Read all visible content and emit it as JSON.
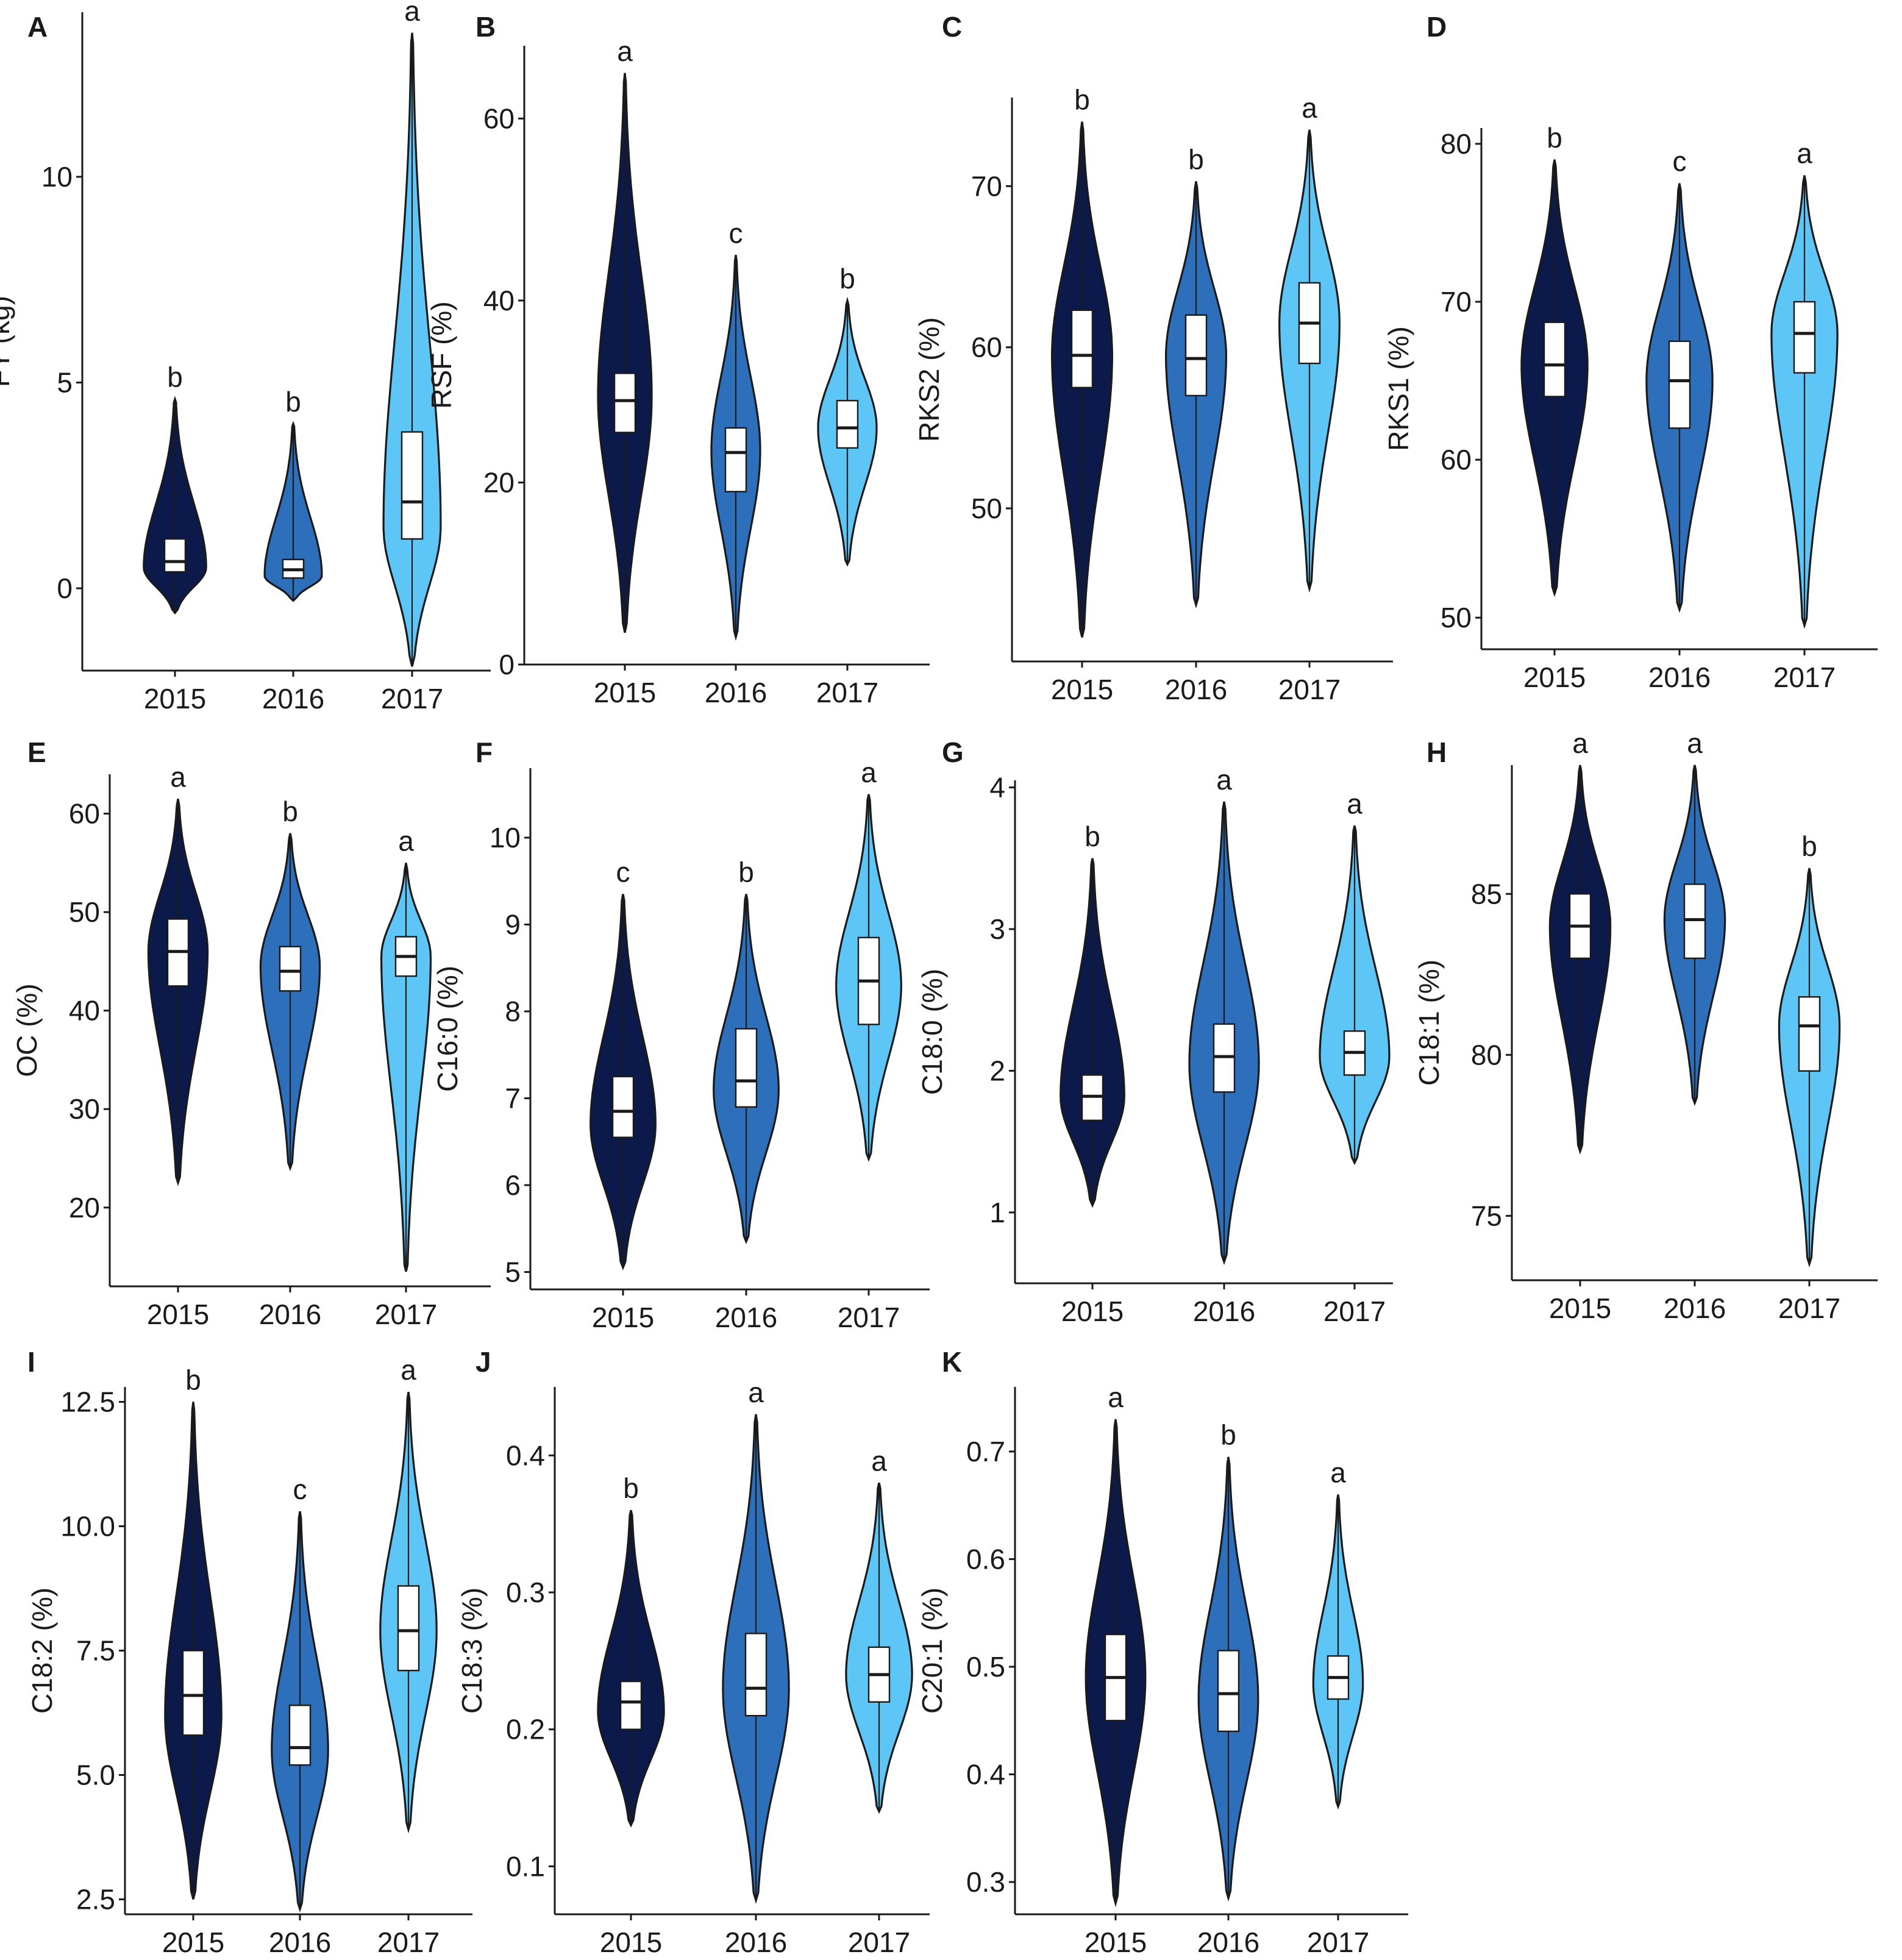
{
  "colors": {
    "2015": "#0b1a4a",
    "2016": "#2d6fba",
    "2017": "#5ec6f6",
    "axis": "#1a1a1a"
  },
  "chart_data": [
    {
      "letter": "A",
      "type": "violin",
      "ylabel": "FY (kg)",
      "ylim": [
        -2,
        14
      ],
      "ticks": [
        0,
        5,
        10
      ],
      "tick_labels": [
        "0",
        "5",
        "10"
      ],
      "categories": [
        "2015",
        "2016",
        "2017"
      ],
      "groups": [
        {
          "year": "2015",
          "min": -0.6,
          "q1": 0.4,
          "median": 0.65,
          "q3": 1.2,
          "max": 4.6,
          "mode": 0.5,
          "bw": 0.12,
          "sig": "b"
        },
        {
          "year": "2016",
          "min": -0.3,
          "q1": 0.25,
          "median": 0.45,
          "q3": 0.7,
          "max": 4.0,
          "mode": 0.3,
          "bw": 0.11,
          "sig": "b"
        },
        {
          "year": "2017",
          "min": -1.9,
          "q1": 1.2,
          "median": 2.1,
          "q3": 3.8,
          "max": 13.5,
          "mode": 1.5,
          "bw": 0.11,
          "sig": "a"
        }
      ]
    },
    {
      "letter": "B",
      "type": "violin",
      "ylabel": "RSF (%)",
      "ylim": [
        0,
        68
      ],
      "ticks": [
        0,
        20,
        40,
        60
      ],
      "tick_labels": [
        "0",
        "20",
        "40",
        "60"
      ],
      "categories": [
        "2015",
        "2016",
        "2017"
      ],
      "groups": [
        {
          "year": "2015",
          "min": 3.5,
          "q1": 25.5,
          "median": 29,
          "q3": 32,
          "max": 65,
          "mode": 29.5,
          "bw": 0.11,
          "sig": "a"
        },
        {
          "year": "2016",
          "min": 3,
          "q1": 19,
          "median": 23.3,
          "q3": 26,
          "max": 45,
          "mode": 23.5,
          "bw": 0.1,
          "sig": "c"
        },
        {
          "year": "2017",
          "min": 11,
          "q1": 23.8,
          "median": 26,
          "q3": 29,
          "max": 40,
          "mode": 26,
          "bw": 0.12,
          "sig": "b"
        }
      ]
    },
    {
      "letter": "C",
      "type": "violin",
      "ylabel": "RKS2 (%)",
      "ylim": [
        40.5,
        75.5
      ],
      "ticks": [
        50,
        60,
        70
      ],
      "tick_labels": [
        "50",
        "60",
        "70"
      ],
      "categories": [
        "2015",
        "2016",
        "2017"
      ],
      "groups": [
        {
          "year": "2015",
          "min": 42,
          "q1": 57.5,
          "median": 59.5,
          "q3": 62.3,
          "max": 74,
          "mode": 59.5,
          "bw": 0.12,
          "sig": "b"
        },
        {
          "year": "2016",
          "min": 44,
          "q1": 57,
          "median": 59.3,
          "q3": 62,
          "max": 70.3,
          "mode": 59.5,
          "bw": 0.12,
          "sig": "b"
        },
        {
          "year": "2017",
          "min": 45,
          "q1": 59,
          "median": 61.5,
          "q3": 64,
          "max": 73.5,
          "mode": 61.5,
          "bw": 0.12,
          "sig": "a"
        }
      ]
    },
    {
      "letter": "D",
      "type": "violin",
      "ylabel": "RKS1 (%)",
      "ylim": [
        48,
        81
      ],
      "ticks": [
        50,
        60,
        70,
        80
      ],
      "tick_labels": [
        "50",
        "60",
        "70",
        "80"
      ],
      "categories": [
        "2015",
        "2016",
        "2017"
      ],
      "groups": [
        {
          "year": "2015",
          "min": 51.5,
          "q1": 64,
          "median": 66,
          "q3": 68.7,
          "max": 79,
          "mode": 66,
          "bw": 0.12,
          "sig": "b"
        },
        {
          "year": "2016",
          "min": 50.5,
          "q1": 62,
          "median": 65,
          "q3": 67.5,
          "max": 77.5,
          "mode": 65,
          "bw": 0.12,
          "sig": "c"
        },
        {
          "year": "2017",
          "min": 49.5,
          "q1": 65.5,
          "median": 68,
          "q3": 70,
          "max": 78,
          "mode": 68,
          "bw": 0.12,
          "sig": "a"
        }
      ]
    },
    {
      "letter": "E",
      "type": "violin",
      "ylabel": "OC (%)",
      "ylim": [
        12,
        64
      ],
      "ticks": [
        20,
        30,
        40,
        50,
        60
      ],
      "tick_labels": [
        "20",
        "30",
        "40",
        "50",
        "60"
      ],
      "categories": [
        "2015",
        "2016",
        "2017"
      ],
      "groups": [
        {
          "year": "2015",
          "min": 22.5,
          "q1": 42.5,
          "median": 46,
          "q3": 49.3,
          "max": 61.5,
          "mode": 46,
          "bw": 0.12,
          "sig": "a"
        },
        {
          "year": "2016",
          "min": 24,
          "q1": 42,
          "median": 44,
          "q3": 46.5,
          "max": 58,
          "mode": 44.5,
          "bw": 0.12,
          "sig": "b"
        },
        {
          "year": "2017",
          "min": 13.5,
          "q1": 43.5,
          "median": 45.5,
          "q3": 47.5,
          "max": 55,
          "mode": 45.5,
          "bw": 0.1,
          "sig": "a"
        }
      ]
    },
    {
      "letter": "F",
      "type": "violin",
      "ylabel": "C16:0 (%)",
      "ylim": [
        4.8,
        10.8
      ],
      "ticks": [
        5,
        6,
        7,
        8,
        9,
        10
      ],
      "tick_labels": [
        "5",
        "6",
        "7",
        "8",
        "9",
        "10"
      ],
      "categories": [
        "2015",
        "2016",
        "2017"
      ],
      "groups": [
        {
          "year": "2015",
          "min": 5.05,
          "q1": 6.55,
          "median": 6.85,
          "q3": 7.25,
          "max": 9.35,
          "mode": 6.7,
          "bw": 0.12,
          "sig": "c"
        },
        {
          "year": "2016",
          "min": 5.35,
          "q1": 6.9,
          "median": 7.2,
          "q3": 7.8,
          "max": 9.35,
          "mode": 7.1,
          "bw": 0.12,
          "sig": "b"
        },
        {
          "year": "2017",
          "min": 6.3,
          "q1": 7.85,
          "median": 8.35,
          "q3": 8.85,
          "max": 10.5,
          "mode": 8.3,
          "bw": 0.12,
          "sig": "a"
        }
      ]
    },
    {
      "letter": "G",
      "type": "violin",
      "ylabel": "C18:0 (%)",
      "ylim": [
        0.5,
        4.05
      ],
      "ticks": [
        1,
        2,
        3,
        4
      ],
      "tick_labels": [
        "1",
        "2",
        "3",
        "4"
      ],
      "categories": [
        "2015",
        "2016",
        "2017"
      ],
      "groups": [
        {
          "year": "2015",
          "min": 1.05,
          "q1": 1.65,
          "median": 1.82,
          "q3": 1.97,
          "max": 3.5,
          "mode": 1.82,
          "bw": 0.11,
          "sig": "b"
        },
        {
          "year": "2016",
          "min": 0.65,
          "q1": 1.85,
          "median": 2.1,
          "q3": 2.33,
          "max": 3.9,
          "mode": 2.05,
          "bw": 0.12,
          "sig": "a"
        },
        {
          "year": "2017",
          "min": 1.35,
          "q1": 1.97,
          "median": 2.13,
          "q3": 2.28,
          "max": 3.73,
          "mode": 2.1,
          "bw": 0.12,
          "sig": "a"
        }
      ]
    },
    {
      "letter": "H",
      "type": "violin",
      "ylabel": "C18:1 (%)",
      "ylim": [
        73,
        89
      ],
      "ticks": [
        75,
        80,
        85
      ],
      "tick_labels": [
        "75",
        "80",
        "85"
      ],
      "categories": [
        "2015",
        "2016",
        "2017"
      ],
      "groups": [
        {
          "year": "2015",
          "min": 77,
          "q1": 83,
          "median": 84,
          "q3": 85,
          "max": 89,
          "mode": 84,
          "bw": 0.12,
          "sig": "a"
        },
        {
          "year": "2016",
          "min": 78.5,
          "q1": 83,
          "median": 84.2,
          "q3": 85.3,
          "max": 89,
          "mode": 84.2,
          "bw": 0.12,
          "sig": "a"
        },
        {
          "year": "2017",
          "min": 73.5,
          "q1": 79.5,
          "median": 80.9,
          "q3": 81.8,
          "max": 85.8,
          "mode": 80.9,
          "bw": 0.12,
          "sig": "b"
        }
      ]
    },
    {
      "letter": "I",
      "type": "violin",
      "ylabel": "C18:2 (%)",
      "ylim": [
        2.2,
        12.8
      ],
      "ticks": [
        2.5,
        5.0,
        7.5,
        10.0,
        12.5
      ],
      "tick_labels": [
        "2.5",
        "5.0",
        "7.5",
        "10.0",
        "12.5"
      ],
      "categories": [
        "2015",
        "2016",
        "2017"
      ],
      "groups": [
        {
          "year": "2015",
          "min": 2.5,
          "q1": 5.8,
          "median": 6.6,
          "q3": 7.5,
          "max": 12.5,
          "mode": 6.2,
          "bw": 0.12,
          "sig": "b"
        },
        {
          "year": "2016",
          "min": 2.3,
          "q1": 5.2,
          "median": 5.55,
          "q3": 6.4,
          "max": 10.3,
          "mode": 5.5,
          "bw": 0.12,
          "sig": "c"
        },
        {
          "year": "2017",
          "min": 3.9,
          "q1": 7.1,
          "median": 7.9,
          "q3": 8.8,
          "max": 12.7,
          "mode": 7.9,
          "bw": 0.12,
          "sig": "a"
        }
      ]
    },
    {
      "letter": "J",
      "type": "violin",
      "ylabel": "C18:3 (%)",
      "ylim": [
        0.065,
        0.45
      ],
      "ticks": [
        0.1,
        0.2,
        0.3,
        0.4
      ],
      "tick_labels": [
        "0.1",
        "0.2",
        "0.3",
        "0.4"
      ],
      "categories": [
        "2015",
        "2016",
        "2017"
      ],
      "groups": [
        {
          "year": "2015",
          "min": 0.13,
          "q1": 0.2,
          "median": 0.22,
          "q3": 0.235,
          "max": 0.36,
          "mode": 0.213,
          "bw": 0.12,
          "sig": "b"
        },
        {
          "year": "2016",
          "min": 0.075,
          "q1": 0.21,
          "median": 0.23,
          "q3": 0.27,
          "max": 0.43,
          "mode": 0.23,
          "bw": 0.12,
          "sig": "a"
        },
        {
          "year": "2017",
          "min": 0.14,
          "q1": 0.22,
          "median": 0.24,
          "q3": 0.26,
          "max": 0.38,
          "mode": 0.24,
          "bw": 0.12,
          "sig": "a"
        }
      ]
    },
    {
      "letter": "K",
      "type": "violin",
      "ylabel": "C20:1 (%)",
      "ylim": [
        0.27,
        0.76
      ],
      "ticks": [
        0.3,
        0.4,
        0.5,
        0.6,
        0.7
      ],
      "tick_labels": [
        "0.3",
        "0.4",
        "0.5",
        "0.6",
        "0.7"
      ],
      "categories": [
        "2015",
        "2016",
        "2017"
      ],
      "groups": [
        {
          "year": "2015",
          "min": 0.28,
          "q1": 0.45,
          "median": 0.49,
          "q3": 0.53,
          "max": 0.73,
          "mode": 0.49,
          "bw": 0.12,
          "sig": "a"
        },
        {
          "year": "2016",
          "min": 0.285,
          "q1": 0.44,
          "median": 0.475,
          "q3": 0.515,
          "max": 0.695,
          "mode": 0.47,
          "bw": 0.12,
          "sig": "b"
        },
        {
          "year": "2017",
          "min": 0.37,
          "q1": 0.47,
          "median": 0.49,
          "q3": 0.51,
          "max": 0.66,
          "mode": 0.485,
          "bw": 0.1,
          "sig": "a"
        }
      ]
    }
  ]
}
